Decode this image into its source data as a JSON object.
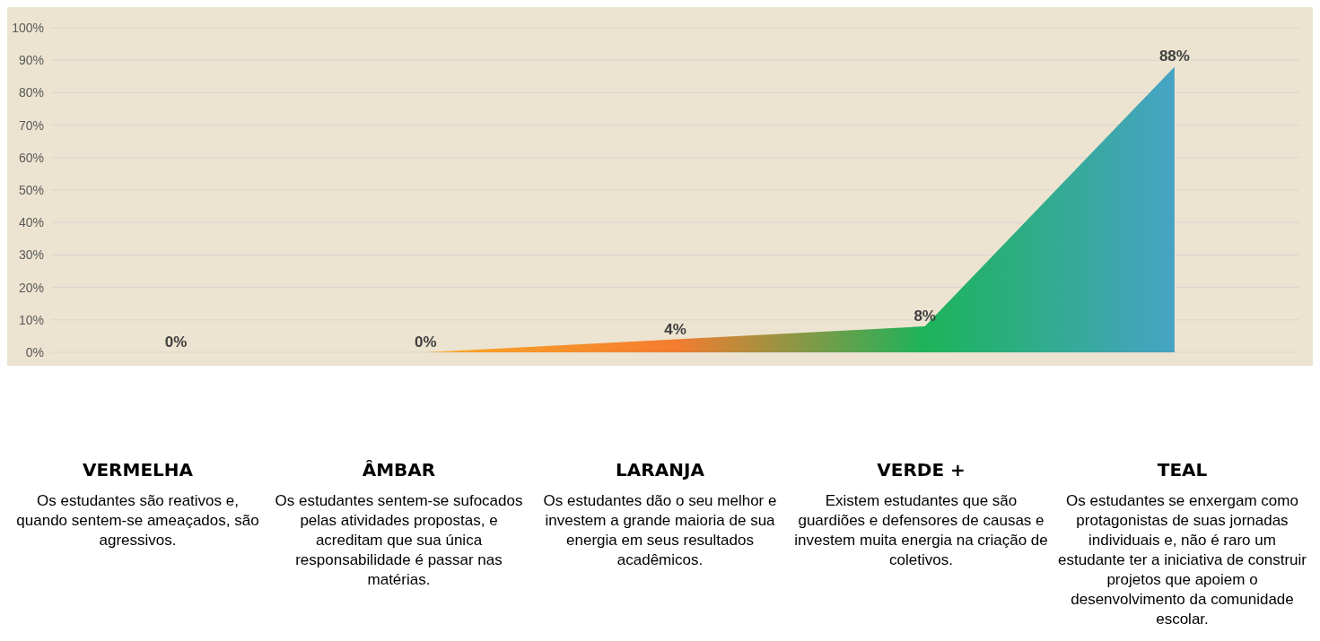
{
  "chart_data": {
    "type": "area",
    "categories": [
      "VERMELHA",
      "ÂMBAR",
      "LARANJA",
      "VERDE +",
      "TEAL"
    ],
    "values": [
      0,
      0,
      4,
      8,
      88
    ],
    "colors": [
      "#f9a825",
      "#f9a825",
      "#f47c30",
      "#1db35a",
      "#47a3c5"
    ],
    "ylim": [
      0,
      100
    ],
    "yticks": [
      {
        "value": 0,
        "label": "0%"
      },
      {
        "value": 10,
        "label": "10%"
      },
      {
        "value": 20,
        "label": "20%"
      },
      {
        "value": 30,
        "label": "30%"
      },
      {
        "value": 40,
        "label": "40%"
      },
      {
        "value": 50,
        "label": "50%"
      },
      {
        "value": 60,
        "label": "60%"
      },
      {
        "value": 70,
        "label": "70%"
      },
      {
        "value": 80,
        "label": "80%"
      },
      {
        "value": 90,
        "label": "90%"
      },
      {
        "value": 100,
        "label": "100%"
      }
    ],
    "grid": "y",
    "tick_labels": "y",
    "value_labels": [
      "0%",
      "0%",
      "4%",
      "8%",
      "88%"
    ],
    "annotations": [
      "Os estudantes são reativos e, quando sentem-se ameaçados, são agressivos.",
      "Os estudantes sentem-se sufocados pelas atividades propostas, e acreditam que sua única responsabilidade é passar nas matérias.",
      "Os estudantes dão o seu melhor e investem a grande maioria de sua energia em seus resultados acadêmicos.",
      "Existem estudantes que são guardiões e defensores de causas e investem muita energia na criação de coletivos.",
      "Os estudantes se enxergam como protagonistas de suas jornadas individuais e, não é raro um estudante ter a iniciativa de construir projetos que apoiem o desenvolvimento da comunidade escolar."
    ]
  }
}
